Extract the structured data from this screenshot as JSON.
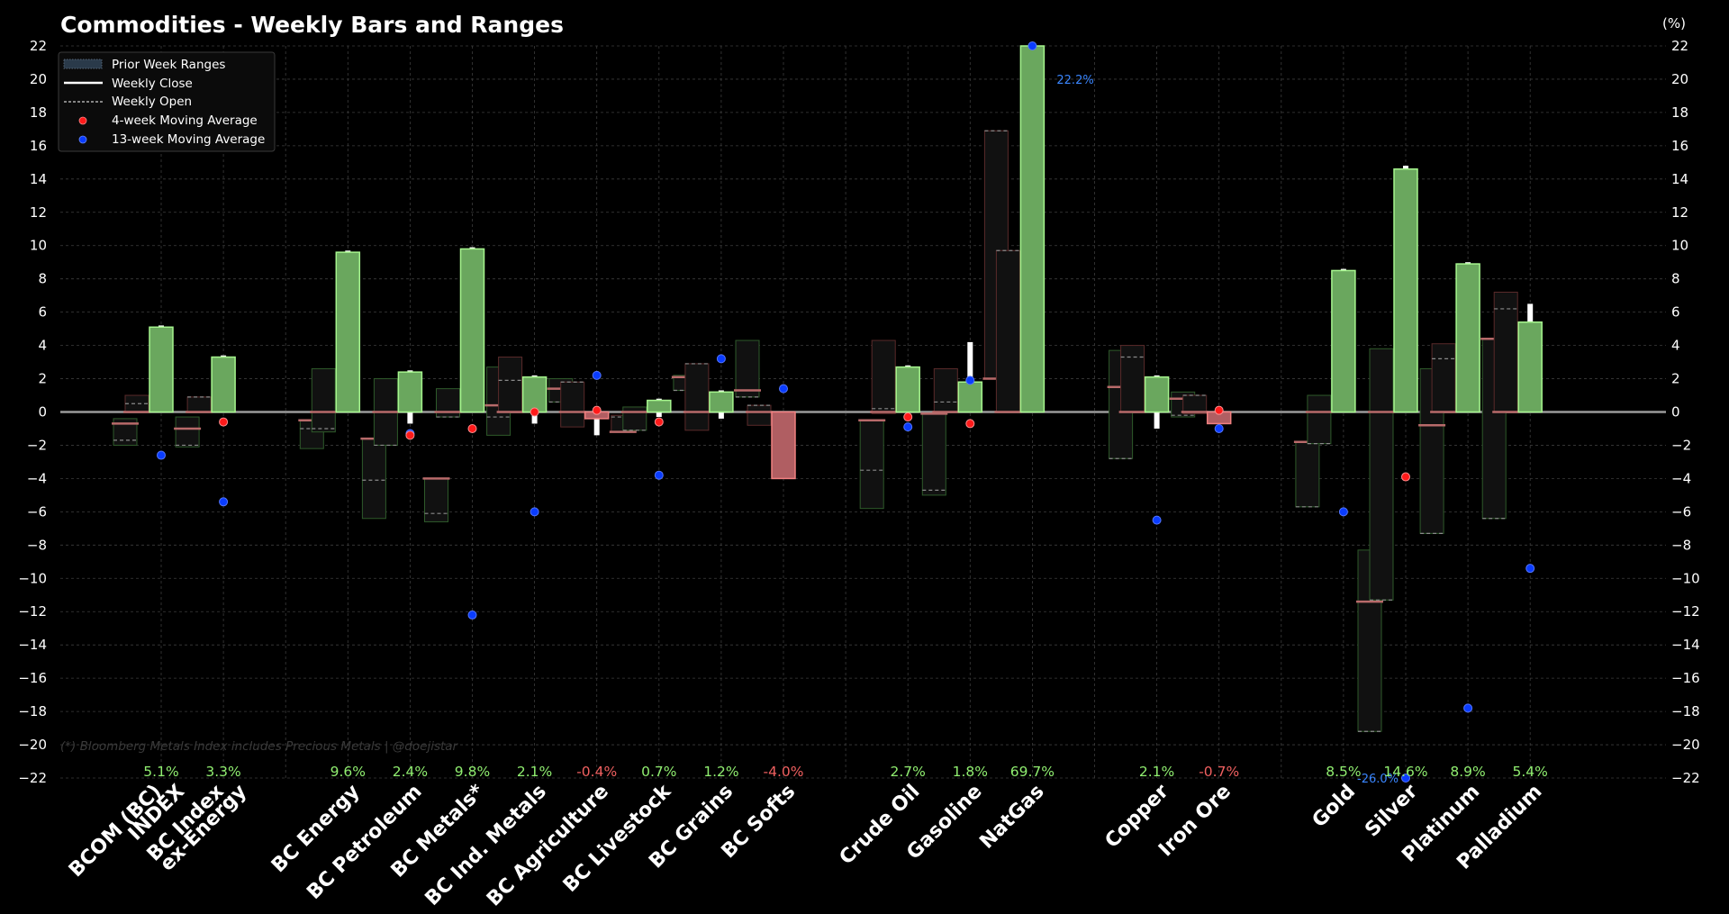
{
  "chart_data": {
    "type": "bar",
    "title": "Commodities - Weekly Bars and Ranges",
    "ylabel_right": "(%)",
    "ylim": [
      -22,
      22
    ],
    "yticks": [
      22,
      20,
      18,
      16,
      14,
      12,
      10,
      8,
      6,
      4,
      2,
      0,
      -2,
      -4,
      -6,
      -8,
      -10,
      -12,
      -14,
      -16,
      -18,
      -20,
      -22
    ],
    "ytick_labels": [
      "22",
      "20",
      "18",
      "16",
      "14",
      "12",
      "10",
      "8",
      "6",
      "4",
      "2",
      "0",
      "−2",
      "−4",
      "−6",
      "−8",
      "−10",
      "−12",
      "−14",
      "−16",
      "−18",
      "−20",
      "−22"
    ],
    "grid": true,
    "legend": {
      "placement": "top-left",
      "entries": [
        {
          "label": "Prior Week Ranges",
          "kind": "patch"
        },
        {
          "label": "Weekly Close",
          "kind": "solid-line"
        },
        {
          "label": "Weekly Open",
          "kind": "dashed-line"
        },
        {
          "label": "4-week Moving Average",
          "kind": "red-dot"
        },
        {
          "label": "13-week Moving Average",
          "kind": "blue-dot"
        }
      ]
    },
    "footnote": "(*) Bloomberg Metals Index includes Precious Metals  |  @doejistar",
    "colors": {
      "up_fill": "#6aa75e",
      "up_edge": "#a6f58e",
      "down_fill": "#b05e62",
      "down_edge": "#f08080",
      "pos_text": "#90ee70",
      "neg_text": "#f06060",
      "ma4": "#ff1a1a",
      "ma13": "#0a3cff",
      "annotation": "#3a86ff",
      "prior_up_edge": "#2e5a2a",
      "prior_down_edge": "#5a2a2a",
      "prior_fill": "#111111",
      "prior_close": "#b86a6a",
      "zero_line": "#9a9a9a"
    },
    "categories": [
      {
        "label": "BCOM (BC)\nINDEX",
        "group": 0,
        "weekly_return_pct": 5.1,
        "return_label": "5.1%",
        "high": 5.2,
        "low": 0.0,
        "ma4": null,
        "ma13": -2.6,
        "prior": [
          {
            "open": -1.7,
            "close": -0.7,
            "low": -2.0,
            "high": -0.4,
            "dir": "up"
          },
          {
            "open": 0.5,
            "close": 0.0,
            "low": 0.0,
            "high": 1.0,
            "dir": "down"
          }
        ]
      },
      {
        "label": "BC Index\nex-Energy",
        "group": 0,
        "weekly_return_pct": 3.3,
        "return_label": "3.3%",
        "high": 3.4,
        "low": 0.0,
        "ma4": -0.6,
        "ma13": -5.4,
        "prior": [
          {
            "open": -2.0,
            "close": -1.0,
            "low": -2.1,
            "high": -0.3,
            "dir": "up"
          },
          {
            "open": 0.9,
            "close": 0.0,
            "low": 0.0,
            "high": 0.9,
            "dir": "down"
          }
        ]
      },
      {
        "label": "BC Energy",
        "group": 1,
        "weekly_return_pct": 9.6,
        "return_label": "9.6%",
        "high": 9.7,
        "low": 0.1,
        "ma4": null,
        "ma13": null,
        "prior": [
          {
            "open": -1.0,
            "close": -0.5,
            "low": -2.2,
            "high": -0.5,
            "dir": "up"
          },
          {
            "open": -1.0,
            "close": 0.0,
            "low": -1.2,
            "high": 2.6,
            "dir": "up"
          }
        ]
      },
      {
        "label": "BC Petroleum",
        "group": 1,
        "weekly_return_pct": 2.4,
        "return_label": "2.4%",
        "high": 2.5,
        "low": -0.7,
        "ma4": -1.4,
        "ma13": -1.3,
        "prior": [
          {
            "open": -4.1,
            "close": -1.6,
            "low": -6.4,
            "high": -1.6,
            "dir": "up"
          },
          {
            "open": -2.0,
            "close": 0.0,
            "low": -2.0,
            "high": 2.0,
            "dir": "up"
          }
        ]
      },
      {
        "label": "BC Metals*",
        "group": 1,
        "weekly_return_pct": 9.8,
        "return_label": "9.8%",
        "high": 9.9,
        "low": 2.6,
        "ma4": -1.0,
        "ma13": -12.2,
        "prior": [
          {
            "open": -6.1,
            "close": -4.0,
            "low": -6.6,
            "high": -4.0,
            "dir": "up"
          },
          {
            "open": -0.3,
            "close": 0.0,
            "low": -0.3,
            "high": 1.4,
            "dir": "up"
          }
        ]
      },
      {
        "label": "BC Ind. Metals",
        "group": 1,
        "weekly_return_pct": 2.1,
        "return_label": "2.1%",
        "high": 2.2,
        "low": -0.7,
        "ma4": 0.0,
        "ma13": -6.0,
        "prior": [
          {
            "open": -0.3,
            "close": 0.4,
            "low": -1.4,
            "high": 2.7,
            "dir": "up"
          },
          {
            "open": 1.9,
            "close": 0.0,
            "low": 0.0,
            "high": 3.3,
            "dir": "down"
          }
        ]
      },
      {
        "label": "BC Agriculture",
        "group": 1,
        "weekly_return_pct": -0.4,
        "return_label": "-0.4%",
        "high": 0.0,
        "low": -1.4,
        "ma4": 0.1,
        "ma13": 2.2,
        "prior": [
          {
            "open": 0.6,
            "close": 1.4,
            "low": 0.6,
            "high": 2.0,
            "dir": "up"
          },
          {
            "open": 1.8,
            "close": 0.0,
            "low": -0.9,
            "high": 1.8,
            "dir": "down"
          }
        ]
      },
      {
        "label": "BC Livestock",
        "group": 1,
        "weekly_return_pct": 0.7,
        "return_label": "0.7%",
        "high": 0.8,
        "low": -0.3,
        "ma4": -0.6,
        "ma13": -3.8,
        "prior": [
          {
            "open": -0.3,
            "close": -1.2,
            "low": -1.2,
            "high": -0.2,
            "dir": "down"
          },
          {
            "open": -1.1,
            "close": 0.0,
            "low": -1.1,
            "high": 0.3,
            "dir": "up"
          }
        ]
      },
      {
        "label": "BC Grains",
        "group": 1,
        "weekly_return_pct": 1.2,
        "return_label": "1.2%",
        "high": 1.3,
        "low": -0.4,
        "ma4": null,
        "ma13": 3.2,
        "prior": [
          {
            "open": 1.3,
            "close": 2.1,
            "low": 1.3,
            "high": 2.2,
            "dir": "up"
          },
          {
            "open": 2.9,
            "close": 0.0,
            "low": -1.1,
            "high": 2.9,
            "dir": "down"
          }
        ]
      },
      {
        "label": "BC Softs",
        "group": 1,
        "weekly_return_pct": -4.0,
        "return_label": "-4.0%",
        "high": 0.0,
        "low": -4.0,
        "ma4": null,
        "ma13": 1.4,
        "prior": [
          {
            "open": 0.9,
            "close": 1.3,
            "low": 0.9,
            "high": 4.3,
            "dir": "up"
          },
          {
            "open": 0.4,
            "close": 0.0,
            "low": -0.8,
            "high": 0.4,
            "dir": "down"
          }
        ]
      },
      {
        "label": "Crude Oil",
        "group": 2,
        "weekly_return_pct": 2.7,
        "return_label": "2.7%",
        "high": 2.8,
        "low": 0.0,
        "ma4": -0.3,
        "ma13": -0.9,
        "prior": [
          {
            "open": -3.5,
            "close": -0.5,
            "low": -5.8,
            "high": -0.5,
            "dir": "up"
          },
          {
            "open": 0.2,
            "close": 0.0,
            "low": -0.1,
            "high": 4.3,
            "dir": "down"
          }
        ]
      },
      {
        "label": "Gasoline",
        "group": 2,
        "weekly_return_pct": 1.8,
        "return_label": "1.8%",
        "high": 4.2,
        "low": 0.0,
        "ma4": -0.7,
        "ma13": 1.9,
        "prior": [
          {
            "open": -4.7,
            "close": -0.1,
            "low": -5.0,
            "high": -0.1,
            "dir": "up"
          },
          {
            "open": 0.6,
            "close": 0.0,
            "low": 0.0,
            "high": 2.6,
            "dir": "down"
          }
        ]
      },
      {
        "label": "NatGas",
        "group": 2,
        "weekly_return_pct": 69.7,
        "return_label": "69.7%",
        "high": 69.7,
        "low": 0.0,
        "ma4": null,
        "ma13": 22.2,
        "ma13_label": "22.2%",
        "prior": [
          {
            "open": 16.9,
            "close": 2.0,
            "low": 2.0,
            "high": 16.9,
            "dir": "down"
          },
          {
            "open": 9.7,
            "close": 0.0,
            "low": 0.0,
            "high": 9.7,
            "dir": "down"
          }
        ]
      },
      {
        "label": "Copper",
        "group": 3,
        "weekly_return_pct": 2.1,
        "return_label": "2.1%",
        "high": 2.2,
        "low": -1.0,
        "ma4": null,
        "ma13": -6.5,
        "prior": [
          {
            "open": -2.8,
            "close": 1.5,
            "low": -2.8,
            "high": 3.7,
            "dir": "up"
          },
          {
            "open": 3.3,
            "close": 0.0,
            "low": 0.0,
            "high": 4.0,
            "dir": "down"
          }
        ]
      },
      {
        "label": "Iron Ore",
        "group": 3,
        "weekly_return_pct": -0.7,
        "return_label": "-0.7%",
        "high": 0.0,
        "low": -0.7,
        "ma4": 0.1,
        "ma13": -1.0,
        "prior": [
          {
            "open": -0.2,
            "close": 0.8,
            "low": -0.3,
            "high": 1.2,
            "dir": "up"
          },
          {
            "open": 1.0,
            "close": 0.0,
            "low": -0.1,
            "high": 1.0,
            "dir": "down"
          }
        ]
      },
      {
        "label": "Gold",
        "group": 4,
        "weekly_return_pct": 8.5,
        "return_label": "8.5%",
        "high": 8.6,
        "low": 0.0,
        "ma4": null,
        "ma13": -6.0,
        "prior": [
          {
            "open": -5.7,
            "close": -1.8,
            "low": -5.7,
            "high": -1.8,
            "dir": "up"
          },
          {
            "open": -1.9,
            "close": 0.0,
            "low": -1.9,
            "high": 1.0,
            "dir": "up"
          }
        ]
      },
      {
        "label": "Silver",
        "group": 4,
        "weekly_return_pct": 14.6,
        "return_label": "14.6%",
        "high": 14.8,
        "low": 0.1,
        "ma4": -3.9,
        "ma13": -26.0,
        "ma13_label": "-26.0%",
        "prior": [
          {
            "open": -19.2,
            "close": -11.4,
            "low": -19.2,
            "high": -8.3,
            "dir": "up"
          },
          {
            "open": -11.3,
            "close": 0.0,
            "low": -11.3,
            "high": 3.8,
            "dir": "up"
          }
        ]
      },
      {
        "label": "Platinum",
        "group": 4,
        "weekly_return_pct": 8.9,
        "return_label": "8.9%",
        "high": 9.0,
        "low": 0.0,
        "ma4": null,
        "ma13": -17.8,
        "prior": [
          {
            "open": -7.3,
            "close": -0.8,
            "low": -7.3,
            "high": 2.6,
            "dir": "up"
          },
          {
            "open": 3.2,
            "close": 0.0,
            "low": 0.0,
            "high": 4.1,
            "dir": "down"
          }
        ]
      },
      {
        "label": "Palladium",
        "group": 4,
        "weekly_return_pct": 5.4,
        "return_label": "5.4%",
        "high": 6.5,
        "low": 0.0,
        "ma4": null,
        "ma13": -9.4,
        "prior": [
          {
            "open": -6.4,
            "close": 4.4,
            "low": -6.4,
            "high": 4.4,
            "dir": "up"
          },
          {
            "open": 6.2,
            "close": 0.0,
            "low": 0.0,
            "high": 7.2,
            "dir": "down"
          }
        ]
      }
    ]
  }
}
